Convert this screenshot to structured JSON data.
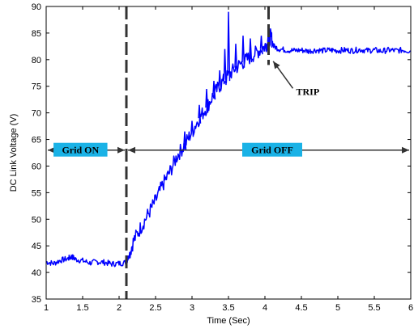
{
  "chart_data": {
    "type": "line",
    "title": "",
    "xlabel": "Time (Sec)",
    "ylabel": "DC Link Voltage (V)",
    "xlim": [
      1,
      6
    ],
    "ylim": [
      35,
      90
    ],
    "x_ticks": [
      1,
      1.5,
      2,
      2.5,
      3,
      3.5,
      4,
      4.5,
      5,
      5.5,
      6
    ],
    "x_tick_labels": [
      "1",
      "1.5",
      "2",
      "2.5",
      "3",
      "3.5",
      "4",
      "4.5",
      "5",
      "5.5",
      "6"
    ],
    "y_ticks": [
      35,
      40,
      45,
      50,
      55,
      60,
      65,
      70,
      75,
      80,
      85,
      90
    ],
    "y_tick_labels": [
      "35",
      "40",
      "45",
      "50",
      "55",
      "60",
      "65",
      "70",
      "75",
      "80",
      "85",
      "90"
    ],
    "grid": false,
    "series": [
      {
        "color": "#0000ff",
        "points": [
          [
            1.0,
            42.0
          ],
          [
            1.1,
            41.7
          ],
          [
            1.2,
            42.3
          ],
          [
            1.3,
            42.6
          ],
          [
            1.35,
            43.0
          ],
          [
            1.4,
            42.5
          ],
          [
            1.5,
            42.2
          ],
          [
            1.6,
            41.8
          ],
          [
            1.7,
            42.0
          ],
          [
            1.8,
            41.9
          ],
          [
            1.9,
            41.6
          ],
          [
            2.0,
            41.7
          ],
          [
            2.1,
            41.9
          ],
          [
            2.13,
            43.0
          ],
          [
            2.2,
            46.0
          ],
          [
            2.3,
            48.5
          ],
          [
            2.4,
            51.0
          ],
          [
            2.5,
            53.5
          ],
          [
            2.6,
            56.5
          ],
          [
            2.7,
            59.0
          ],
          [
            2.8,
            62.0
          ],
          [
            2.9,
            64.0
          ],
          [
            3.0,
            66.5
          ],
          [
            3.1,
            69.0
          ],
          [
            3.2,
            71.0
          ],
          [
            3.3,
            73.5
          ],
          [
            3.4,
            75.5
          ],
          [
            3.5,
            77.0
          ],
          [
            3.6,
            78.5
          ],
          [
            3.7,
            79.5
          ],
          [
            3.8,
            80.5
          ],
          [
            3.9,
            81.5
          ],
          [
            4.0,
            82.5
          ],
          [
            4.05,
            83.5
          ],
          [
            4.08,
            84.5
          ],
          [
            4.12,
            82.5
          ],
          [
            4.2,
            82.0
          ],
          [
            4.3,
            81.8
          ],
          [
            4.4,
            81.7
          ],
          [
            4.5,
            81.8
          ],
          [
            4.6,
            81.6
          ],
          [
            4.7,
            81.8
          ],
          [
            4.8,
            81.7
          ],
          [
            4.9,
            81.8
          ],
          [
            5.0,
            81.7
          ],
          [
            5.1,
            81.8
          ],
          [
            5.2,
            81.7
          ],
          [
            5.3,
            81.9
          ],
          [
            5.4,
            81.7
          ],
          [
            5.5,
            81.8
          ],
          [
            5.6,
            81.6
          ],
          [
            5.7,
            81.8
          ],
          [
            5.8,
            81.7
          ],
          [
            5.9,
            81.8
          ],
          [
            6.0,
            81.6
          ]
        ],
        "spikes": [
          [
            3.5,
            89.0
          ],
          [
            3.45,
            82.0
          ],
          [
            3.38,
            78.0
          ],
          [
            3.3,
            76.0
          ],
          [
            3.2,
            74.5
          ],
          [
            3.1,
            71.5
          ],
          [
            3.6,
            83.0
          ],
          [
            3.7,
            84.5
          ],
          [
            3.8,
            84.0
          ],
          [
            3.95,
            84.5
          ],
          [
            4.05,
            86.0
          ],
          [
            2.9,
            66.5
          ],
          [
            3.0,
            68.5
          ]
        ]
      }
    ],
    "vlines": [
      {
        "x": 2.1,
        "y_range": [
          35,
          90
        ],
        "style": "dashed",
        "color": "#333333"
      },
      {
        "x": 4.05,
        "y_range": [
          79,
          90
        ],
        "style": "dashed",
        "color": "#333333"
      }
    ],
    "annotations": [
      {
        "kind": "label_box",
        "text": "Grid ON",
        "x_center": 1.47,
        "y": 63,
        "box_color": "#1ab2e6"
      },
      {
        "kind": "label_box",
        "text": "Grid OFF",
        "x_center": 4.1,
        "y": 63,
        "box_color": "#1ab2e6"
      },
      {
        "kind": "arrow_span",
        "x_from": 1.0,
        "x_to": 2.1,
        "y": 63,
        "heads": "both"
      },
      {
        "kind": "arrow_span",
        "x_from": 2.1,
        "x_to": 6.0,
        "y": 63,
        "heads": "both"
      },
      {
        "kind": "arrow_text",
        "text": "TRIP",
        "text_x": 4.65,
        "text_y": 74,
        "target_x": 4.08,
        "target_y": 80
      }
    ]
  }
}
